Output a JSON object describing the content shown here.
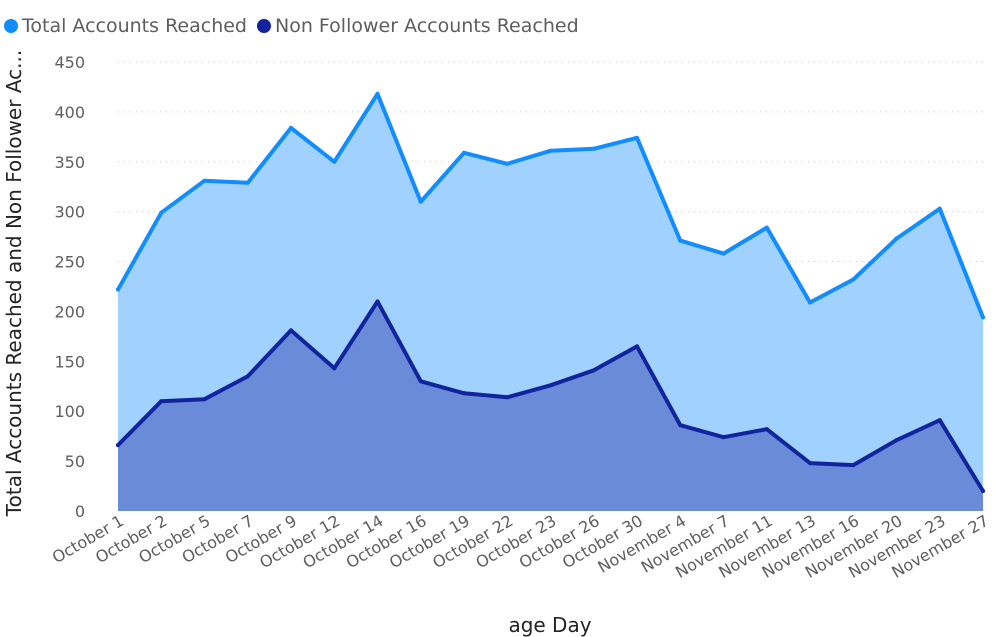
{
  "chart_data": {
    "type": "area",
    "x": [
      "October 1",
      "October 2",
      "October 5",
      "October 7",
      "October 9",
      "October 12",
      "October 14",
      "October 16",
      "October 19",
      "October 22",
      "October 23",
      "October 26",
      "October 30",
      "November 4",
      "November 7",
      "November 11",
      "November 13",
      "November 16",
      "November 20",
      "November 23",
      "November 27"
    ],
    "series": [
      {
        "name": "Total Accounts Reached",
        "color": "#118dff",
        "fill": "#a0d1ff",
        "values": [
          222,
          299,
          331,
          329,
          384,
          350,
          418,
          310,
          359,
          348,
          361,
          363,
          374,
          271,
          258,
          284,
          209,
          232,
          273,
          303,
          194
        ]
      },
      {
        "name": "Non Follower Accounts Reached",
        "color": "#12239e",
        "fill": "#6a8cd8",
        "values": [
          66,
          110,
          112,
          135,
          181,
          143,
          210,
          130,
          118,
          114,
          126,
          141,
          165,
          86,
          74,
          82,
          48,
          46,
          71,
          91,
          20
        ]
      }
    ],
    "ylim": [
      0,
      450
    ],
    "yticks": [
      0,
      50,
      100,
      150,
      200,
      250,
      300,
      350,
      400,
      450
    ],
    "xlabel": "age Day",
    "ylabel": "Total Accounts Reached and Non Follower Ac...",
    "grid": "horizontal dotted",
    "legend_position": "top-left"
  }
}
